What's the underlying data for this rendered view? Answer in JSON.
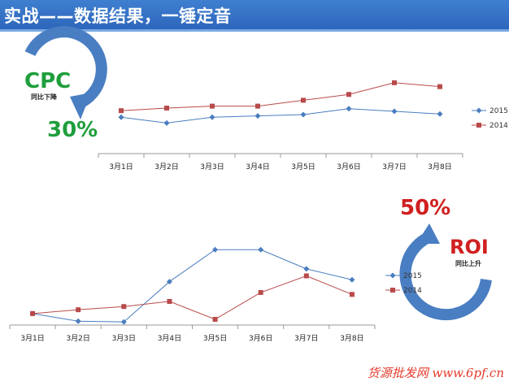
{
  "header": {
    "title": "实战——数据结果，一锤定音"
  },
  "cpc": {
    "label": "CPC",
    "sub": "同比下降",
    "pct": "30%"
  },
  "roi": {
    "label": "ROI",
    "sub": "同比上升",
    "pct": "50%"
  },
  "watermark": "货源批发网 www.6pf.cn",
  "colors": {
    "series2015": "#4a7dbf",
    "series2014": "#b84a4a",
    "arrow": "#4a7ec2",
    "green": "#1f9e3c",
    "red": "#d01f1f"
  },
  "chart_data": [
    {
      "type": "line",
      "categories": [
        "3月1日",
        "3月2日",
        "3月3日",
        "3月4日",
        "3月5日",
        "3月6日",
        "3月7日",
        "3月8日"
      ],
      "series": [
        {
          "name": "2015",
          "values": [
            56,
            47,
            56,
            58,
            60,
            69,
            65,
            61
          ]
        },
        {
          "name": "2014",
          "values": [
            66,
            70,
            73,
            73,
            82,
            91,
            109,
            103
          ]
        }
      ],
      "ylim": [
        0,
        190
      ]
    },
    {
      "type": "line",
      "categories": [
        "3月1日",
        "3月2日",
        "3月3日",
        "3月4日",
        "3月5日",
        "3月6日",
        "3月7日",
        "3月8日"
      ],
      "series": [
        {
          "name": "2015",
          "values": [
            18,
            6,
            5,
            68,
            118,
            118,
            88,
            71
          ]
        },
        {
          "name": "2014",
          "values": [
            18,
            24,
            29,
            37,
            9,
            51,
            77,
            48
          ]
        }
      ],
      "ylim": [
        0,
        140
      ]
    }
  ]
}
